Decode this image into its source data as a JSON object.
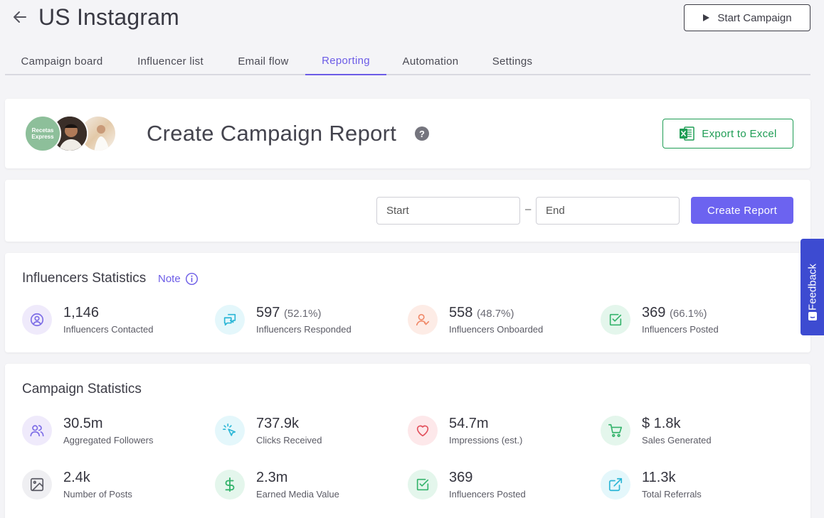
{
  "header": {
    "title": "US Instagram",
    "start_campaign_label": "Start Campaign"
  },
  "tabs": [
    {
      "label": "Campaign board"
    },
    {
      "label": "Influencer list"
    },
    {
      "label": "Email flow"
    },
    {
      "label": "Reporting",
      "active": true
    },
    {
      "label": "Automation"
    },
    {
      "label": "Settings"
    }
  ],
  "report": {
    "title": "Create Campaign Report",
    "help_glyph": "?",
    "export_label": "Export to Excel",
    "avatar_text": "Recetas Express"
  },
  "dates": {
    "start_placeholder": "Start",
    "end_placeholder": "End",
    "separator": "–",
    "create_label": "Create Report"
  },
  "influencer_stats": {
    "title": "Influencers Statistics",
    "note_label": "Note",
    "items": [
      {
        "value": "1,146",
        "pct": "",
        "label": "Influencers Contacted",
        "icon": "user-circle-icon",
        "color": "#7c6ce6",
        "bg": "#efeafb"
      },
      {
        "value": "597",
        "pct": "(52.1%)",
        "label": "Influencers Responded",
        "icon": "chat-icon",
        "color": "#2bb6d6",
        "bg": "#e4f7fb"
      },
      {
        "value": "558",
        "pct": "(48.7%)",
        "label": "Influencers Onboarded",
        "icon": "user-check-icon",
        "color": "#f08a6a",
        "bg": "#fdece6"
      },
      {
        "value": "369",
        "pct": "(66.1%)",
        "label": "Influencers Posted",
        "icon": "check-square-icon",
        "color": "#34b36b",
        "bg": "#e4f6ec"
      }
    ]
  },
  "campaign_stats": {
    "title": "Campaign Statistics",
    "items": [
      {
        "value": "30.5m",
        "label": "Aggregated Followers",
        "icon": "users-icon",
        "color": "#7c6ce6",
        "bg": "#efeafb"
      },
      {
        "value": "737.9k",
        "label": "Clicks Received",
        "icon": "cursor-click-icon",
        "color": "#2bb6d6",
        "bg": "#e4f7fb"
      },
      {
        "value": "54.7m",
        "label": "Impressions (est.)",
        "icon": "heart-icon",
        "color": "#e2505c",
        "bg": "#fde8ea"
      },
      {
        "value": "$ 1.8k",
        "label": "Sales Generated",
        "icon": "cart-icon",
        "color": "#34b36b",
        "bg": "#e4f6ec"
      },
      {
        "value": "2.4k",
        "label": "Number of Posts",
        "icon": "image-icon",
        "color": "#5a5a64",
        "bg": "#efeff2"
      },
      {
        "value": "2.3m",
        "label": "Earned Media Value",
        "icon": "dollar-icon",
        "color": "#34b36b",
        "bg": "#e4f6ec"
      },
      {
        "value": "369",
        "label": "Influencers Posted",
        "icon": "check-square-icon",
        "color": "#34b36b",
        "bg": "#e4f6ec"
      },
      {
        "value": "11.3k",
        "label": "Total Referrals",
        "icon": "external-link-icon",
        "color": "#2bb6d6",
        "bg": "#e4f7fb"
      }
    ]
  },
  "feedback_label": "Feedback"
}
